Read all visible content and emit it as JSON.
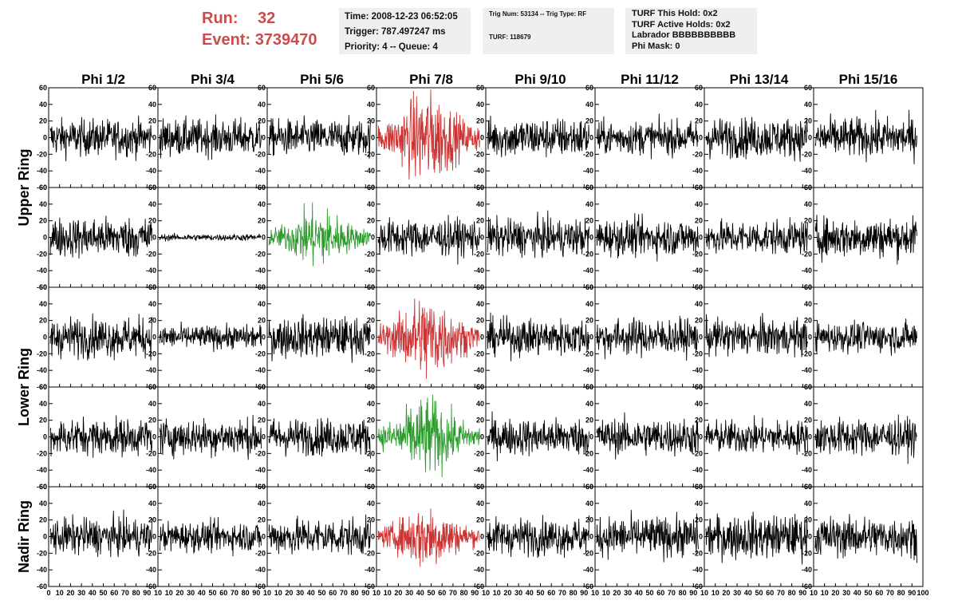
{
  "header": {
    "run_label": "Run:",
    "run_value": "32",
    "event_label": "Event:",
    "event_value": "3739470",
    "time": "Time: 2008-12-23 06:52:05",
    "trigger": "Trigger: 787.497247 ms",
    "priority": "Priority: 4 -- Queue: 4",
    "trig_num": "Trig Num: 53134 -- Trig Type: RF",
    "turf": "TURF: 118679",
    "turf_hold": "TURF This Hold: 0x2",
    "turf_active": "TURF Active Holds: 0x2",
    "labrador": "Labrador BBBBBBBBBB",
    "phi_mask": "Phi Mask: 0"
  },
  "colors": {
    "default": "#000000",
    "highlight_red": "#cc3333",
    "highlight_green": "#2e9a2e",
    "run_text": "#cc4b4b",
    "info_box": "#efefef"
  },
  "chart_data": {
    "type": "line",
    "columns": [
      "Phi 1/2",
      "Phi 3/4",
      "Phi 5/6",
      "Phi 7/8",
      "Phi 9/10",
      "Phi 11/12",
      "Phi 13/14",
      "Phi 15/16"
    ],
    "ring_labels": [
      "Upper Ring",
      "Lower Ring",
      "Nadir Ring"
    ],
    "rows": 5,
    "ylim": [
      -60,
      60
    ],
    "y_ticks": [
      -60,
      -40,
      -20,
      0,
      20,
      40,
      60
    ],
    "xlim": [
      0,
      100
    ],
    "x_ticks": [
      0,
      10,
      20,
      30,
      40,
      50,
      60,
      70,
      80,
      90,
      100
    ],
    "x_tick_labels": [
      "0",
      "10",
      "20",
      "30",
      "40",
      "50",
      "60",
      "70",
      "80",
      "90",
      "10",
      "10",
      "20",
      "30",
      "40",
      "50",
      "60",
      "70",
      "80",
      "90",
      "10",
      "10",
      "20",
      "30",
      "40",
      "50",
      "60",
      "70",
      "80",
      "90",
      "10",
      "10",
      "20",
      "30",
      "40",
      "50",
      "60",
      "70",
      "80",
      "90",
      "10",
      "10",
      "20",
      "30",
      "40",
      "50",
      "60",
      "70",
      "80",
      "90",
      "10",
      "10",
      "20",
      "30",
      "40",
      "50",
      "60",
      "70",
      "80",
      "90",
      "10",
      "10",
      "20",
      "30",
      "40",
      "50",
      "60",
      "70",
      "80",
      "90",
      "10",
      "10",
      "20",
      "30",
      "40",
      "50",
      "60",
      "70",
      "80",
      "90",
      "100"
    ],
    "samples_per_trace": 260,
    "traces": [
      {
        "row": 0,
        "col": 0,
        "amp": 11,
        "color": "default"
      },
      {
        "row": 0,
        "col": 1,
        "amp": 11,
        "color": "default"
      },
      {
        "row": 0,
        "col": 2,
        "amp": 11,
        "color": "default"
      },
      {
        "row": 0,
        "col": 3,
        "amp": 22,
        "color": "highlight_red"
      },
      {
        "row": 0,
        "col": 4,
        "amp": 12,
        "color": "default"
      },
      {
        "row": 0,
        "col": 5,
        "amp": 10,
        "color": "default"
      },
      {
        "row": 0,
        "col": 6,
        "amp": 12,
        "color": "default"
      },
      {
        "row": 0,
        "col": 7,
        "amp": 12,
        "color": "default"
      },
      {
        "row": 1,
        "col": 0,
        "amp": 12,
        "color": "default"
      },
      {
        "row": 1,
        "col": 1,
        "amp": 2,
        "color": "default"
      },
      {
        "row": 1,
        "col": 2,
        "amp": 14,
        "color": "highlight_green"
      },
      {
        "row": 1,
        "col": 3,
        "amp": 11,
        "color": "default"
      },
      {
        "row": 1,
        "col": 4,
        "amp": 11,
        "color": "default"
      },
      {
        "row": 1,
        "col": 5,
        "amp": 11,
        "color": "default"
      },
      {
        "row": 1,
        "col": 6,
        "amp": 10,
        "color": "default"
      },
      {
        "row": 1,
        "col": 7,
        "amp": 12,
        "color": "default"
      },
      {
        "row": 2,
        "col": 0,
        "amp": 12,
        "color": "default"
      },
      {
        "row": 2,
        "col": 1,
        "amp": 7,
        "color": "default"
      },
      {
        "row": 2,
        "col": 2,
        "amp": 12,
        "color": "default"
      },
      {
        "row": 2,
        "col": 3,
        "amp": 20,
        "color": "highlight_red"
      },
      {
        "row": 2,
        "col": 4,
        "amp": 11,
        "color": "default"
      },
      {
        "row": 2,
        "col": 5,
        "amp": 11,
        "color": "default"
      },
      {
        "row": 2,
        "col": 6,
        "amp": 11,
        "color": "default"
      },
      {
        "row": 2,
        "col": 7,
        "amp": 9,
        "color": "default"
      },
      {
        "row": 3,
        "col": 0,
        "amp": 11,
        "color": "default"
      },
      {
        "row": 3,
        "col": 1,
        "amp": 11,
        "color": "default"
      },
      {
        "row": 3,
        "col": 2,
        "amp": 11,
        "color": "default"
      },
      {
        "row": 3,
        "col": 3,
        "amp": 18,
        "color": "highlight_green"
      },
      {
        "row": 3,
        "col": 4,
        "amp": 11,
        "color": "default"
      },
      {
        "row": 3,
        "col": 5,
        "amp": 11,
        "color": "default"
      },
      {
        "row": 3,
        "col": 6,
        "amp": 10,
        "color": "default"
      },
      {
        "row": 3,
        "col": 7,
        "amp": 11,
        "color": "default"
      },
      {
        "row": 4,
        "col": 0,
        "amp": 11,
        "color": "default"
      },
      {
        "row": 4,
        "col": 1,
        "amp": 9,
        "color": "default"
      },
      {
        "row": 4,
        "col": 2,
        "amp": 11,
        "color": "default"
      },
      {
        "row": 4,
        "col": 3,
        "amp": 15,
        "color": "highlight_red"
      },
      {
        "row": 4,
        "col": 4,
        "amp": 11,
        "color": "default"
      },
      {
        "row": 4,
        "col": 5,
        "amp": 12,
        "color": "default"
      },
      {
        "row": 4,
        "col": 6,
        "amp": 13,
        "color": "default"
      },
      {
        "row": 4,
        "col": 7,
        "amp": 12,
        "color": "default"
      }
    ]
  }
}
